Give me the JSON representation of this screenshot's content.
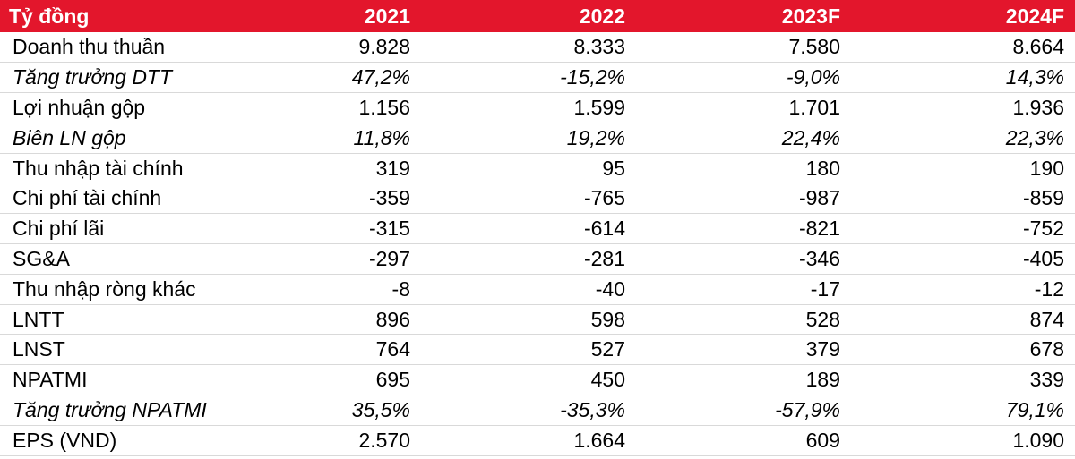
{
  "table": {
    "header": {
      "label": "Tỷ đồng",
      "years": [
        "2021",
        "2022",
        "2023F",
        "2024F"
      ]
    },
    "rows": [
      {
        "label": "Doanh thu thuần",
        "values": [
          "9.828",
          "8.333",
          "7.580",
          "8.664"
        ],
        "italic": false
      },
      {
        "label": "Tăng trưởng DTT",
        "values": [
          "47,2%",
          "-15,2%",
          "-9,0%",
          "14,3%"
        ],
        "italic": true
      },
      {
        "label": "Lợi nhuận gộp",
        "values": [
          "1.156",
          "1.599",
          "1.701",
          "1.936"
        ],
        "italic": false
      },
      {
        "label": "Biên LN gộp",
        "values": [
          "11,8%",
          "19,2%",
          "22,4%",
          "22,3%"
        ],
        "italic": true
      },
      {
        "label": "Thu nhập tài chính",
        "values": [
          "319",
          "95",
          "180",
          "190"
        ],
        "italic": false
      },
      {
        "label": "Chi phí tài chính",
        "values": [
          "-359",
          "-765",
          "-987",
          "-859"
        ],
        "italic": false
      },
      {
        "label": "Chi phí lãi",
        "values": [
          "-315",
          "-614",
          "-821",
          "-752"
        ],
        "italic": false
      },
      {
        "label": "SG&A",
        "values": [
          "-297",
          "-281",
          "-346",
          "-405"
        ],
        "italic": false
      },
      {
        "label": "Thu nhập ròng khác",
        "values": [
          "-8",
          "-40",
          "-17",
          "-12"
        ],
        "italic": false
      },
      {
        "label": "LNTT",
        "values": [
          "896",
          "598",
          "528",
          "874"
        ],
        "italic": false
      },
      {
        "label": "LNST",
        "values": [
          "764",
          "527",
          "379",
          "678"
        ],
        "italic": false
      },
      {
        "label": "NPATMI",
        "values": [
          "695",
          "450",
          "189",
          "339"
        ],
        "italic": false
      },
      {
        "label": "Tăng trưởng NPATMI",
        "values": [
          "35,5%",
          "-35,3%",
          "-57,9%",
          "79,1%"
        ],
        "italic": true
      },
      {
        "label": "EPS (VND)",
        "values": [
          "2.570",
          "1.664",
          "609",
          "1.090"
        ],
        "italic": false
      }
    ],
    "colors": {
      "header_background": "#e3162c",
      "header_text": "#ffffff"
    }
  }
}
